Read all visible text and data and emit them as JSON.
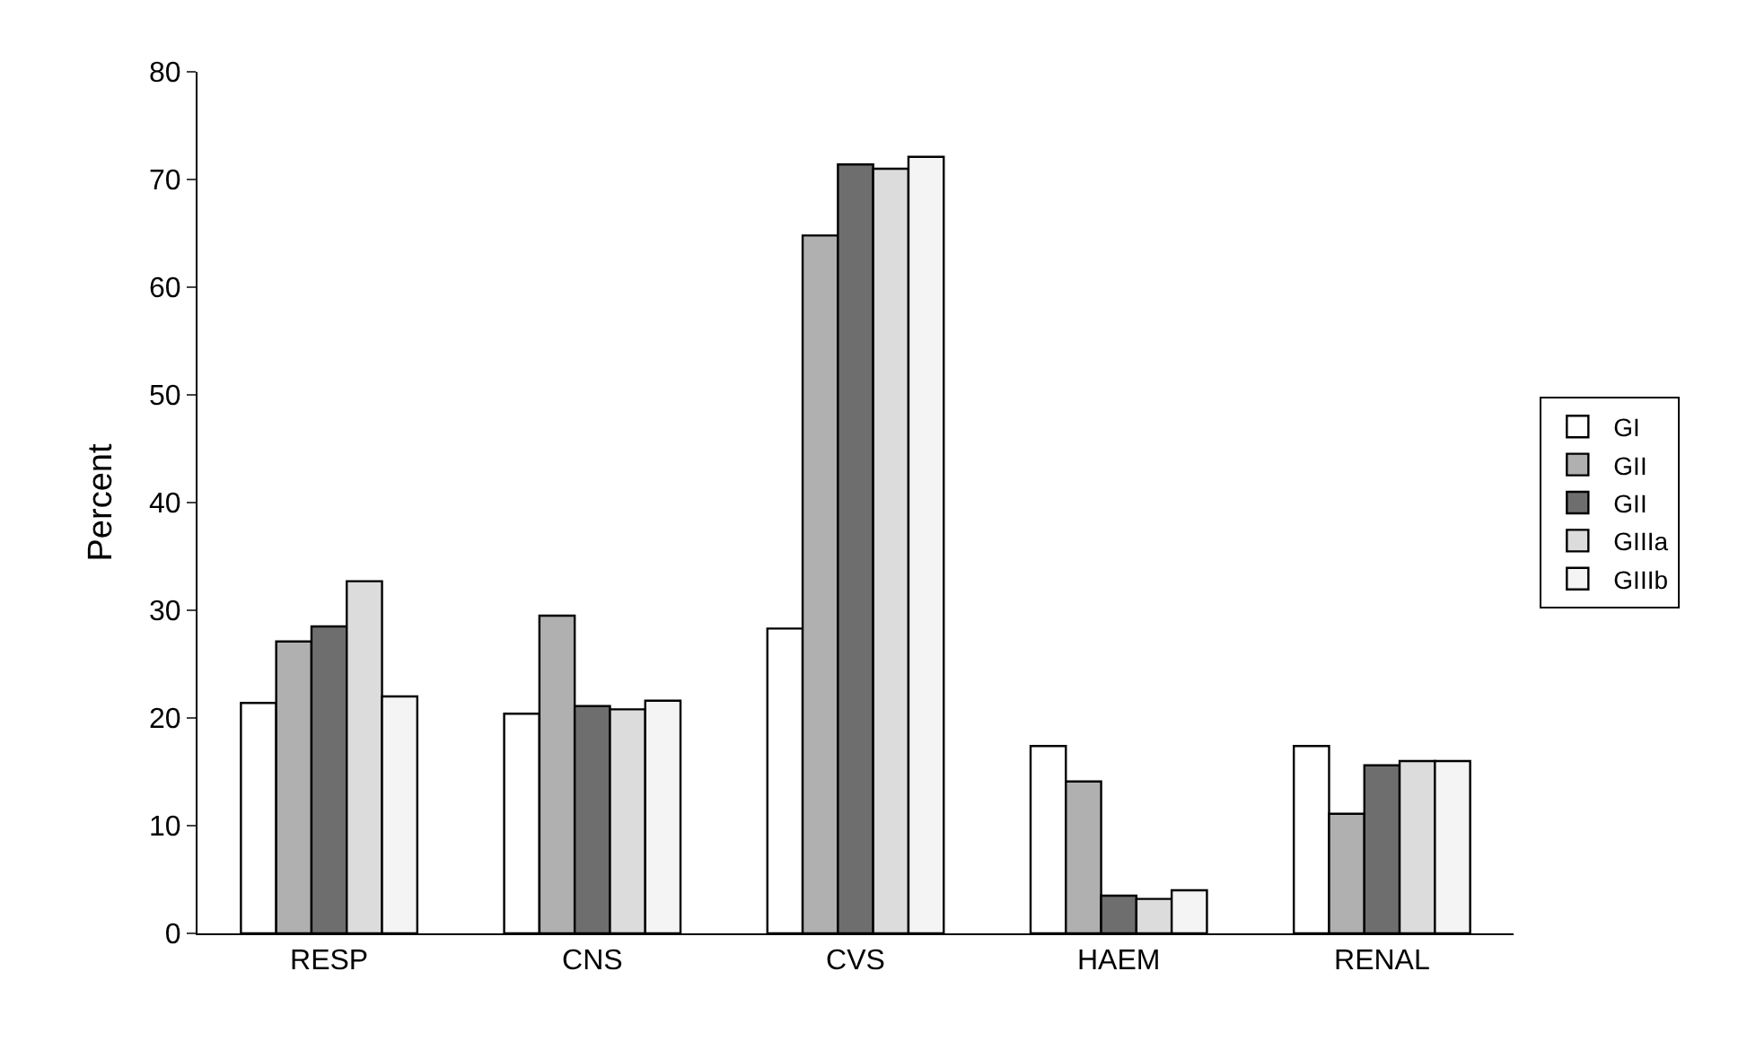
{
  "chart_data": {
    "type": "bar",
    "ylabel": "Percent",
    "categories": [
      "RESP",
      "CNS",
      "CVS",
      "HAEM",
      "RENAL"
    ],
    "series": [
      {
        "name": "GI",
        "color": "#ffffff",
        "values": [
          21.4,
          20.4,
          28.3,
          17.4,
          17.4
        ]
      },
      {
        "name": "GII",
        "color": "#b0b0b0",
        "values": [
          27.1,
          29.5,
          64.8,
          14.1,
          11.1
        ]
      },
      {
        "name": "GII",
        "color": "#6e6e6e",
        "values": [
          28.5,
          21.1,
          71.4,
          3.5,
          15.6
        ]
      },
      {
        "name": "GIIIa",
        "color": "#dcdcdc",
        "values": [
          32.7,
          20.8,
          71.0,
          3.2,
          16.0
        ]
      },
      {
        "name": "GIIIb",
        "color": "#f4f4f4",
        "values": [
          22.0,
          21.6,
          72.1,
          4.0,
          16.0
        ]
      }
    ],
    "ylim": [
      0,
      80
    ],
    "yticks": [
      0,
      10,
      20,
      30,
      40,
      50,
      60,
      70,
      80
    ],
    "grid": false,
    "legend": "right"
  }
}
